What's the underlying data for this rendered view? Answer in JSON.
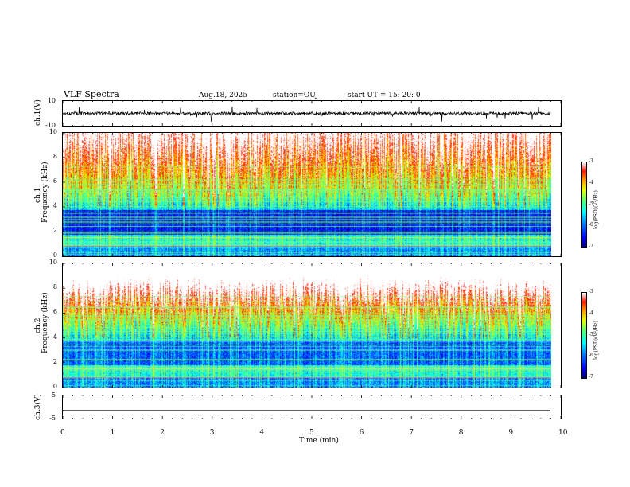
{
  "header": {
    "title": "VLF Spectra",
    "date": "Aug.18, 2025",
    "station": "station=OUJ",
    "start": "start  UT =   15: 20: 0"
  },
  "chart_data": [
    {
      "type": "line",
      "name": "ch1-waveform",
      "ylabel": "ch.1(V)",
      "ylim": [
        -10,
        10
      ],
      "yticks": [
        "10",
        "-10"
      ],
      "xlim": [
        0,
        10
      ],
      "description_level": 3
    },
    {
      "type": "heatmap",
      "name": "ch1-spectrogram",
      "ylabel": "ch.1\nFrequency (kHz)",
      "ylabel_line1": "ch.1",
      "ylabel_line2": "Frequency (kHz)",
      "ylim": [
        0,
        10
      ],
      "yticks": [
        "0",
        "2",
        "4",
        "6",
        "8",
        "10"
      ],
      "xlim": [
        0,
        9.83
      ],
      "colorbar": {
        "label": "log(PSD)(V²/Hz)",
        "range": [
          -7,
          -3
        ],
        "ticks": [
          "-3",
          "-4",
          "-5",
          "-6",
          "-7"
        ]
      }
    },
    {
      "type": "heatmap",
      "name": "ch2-spectrogram",
      "ylabel_line1": "ch.2",
      "ylabel_line2": "Frequency (kHz)",
      "ylim": [
        0,
        10
      ],
      "yticks": [
        "0",
        "2",
        "4",
        "6",
        "8",
        "10"
      ],
      "xlim": [
        0,
        9.83
      ],
      "colorbar": {
        "label": "log(PSD)(V²/Hz)",
        "range": [
          -7,
          -3
        ],
        "ticks": [
          "-3",
          "-4",
          "-5",
          "-6",
          "-7"
        ]
      }
    },
    {
      "type": "line",
      "name": "ch3-waveform",
      "ylabel": "ch.3(V)",
      "ylim": [
        -5,
        5
      ],
      "yticks": [
        "5",
        "-5"
      ],
      "value": -1.6
    }
  ],
  "xaxis": {
    "label": "Time  (min)",
    "ticks": [
      "0",
      "1",
      "2",
      "3",
      "4",
      "5",
      "6",
      "7",
      "8",
      "9",
      "10"
    ]
  },
  "colors": {
    "colormap": [
      "#000080",
      "#0000ff",
      "#00a0ff",
      "#00ffff",
      "#40ff80",
      "#ffff00",
      "#ff8000",
      "#ff0000",
      "#ffffff"
    ]
  }
}
